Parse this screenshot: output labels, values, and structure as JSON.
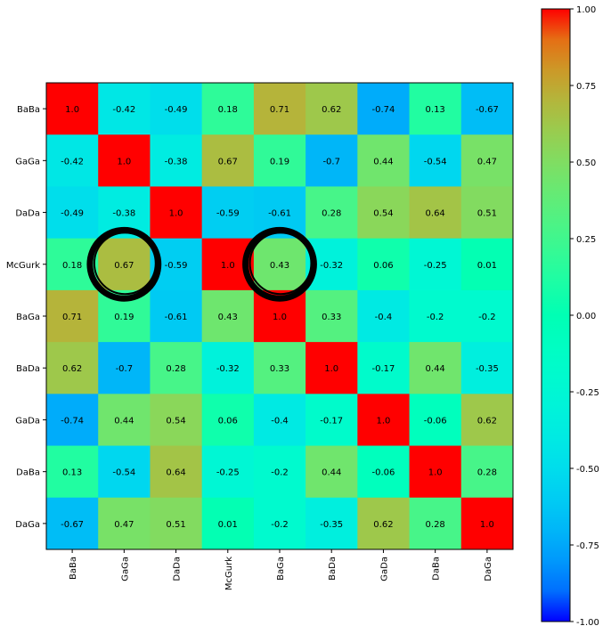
{
  "chart_data": {
    "type": "heatmap",
    "title": "",
    "xlabel": "",
    "ylabel": "",
    "categories": [
      "BaBa",
      "GaGa",
      "DaDa",
      "McGurk",
      "BaGa",
      "BaDa",
      "GaDa",
      "DaBa",
      "DaGa"
    ],
    "matrix": [
      [
        1.0,
        -0.42,
        -0.49,
        0.18,
        0.71,
        0.62,
        -0.74,
        0.13,
        -0.67
      ],
      [
        -0.42,
        1.0,
        -0.38,
        0.67,
        0.19,
        -0.7,
        0.44,
        -0.54,
        0.47
      ],
      [
        -0.49,
        -0.38,
        1.0,
        -0.59,
        -0.61,
        0.28,
        0.54,
        0.64,
        0.51
      ],
      [
        0.18,
        0.67,
        -0.59,
        1.0,
        0.43,
        -0.32,
        0.06,
        -0.25,
        0.01
      ],
      [
        0.71,
        0.19,
        -0.61,
        0.43,
        1.0,
        0.33,
        -0.4,
        -0.2,
        -0.2
      ],
      [
        0.62,
        -0.7,
        0.28,
        -0.32,
        0.33,
        1.0,
        -0.17,
        0.44,
        -0.35
      ],
      [
        -0.74,
        0.44,
        0.54,
        0.06,
        -0.4,
        -0.17,
        1.0,
        -0.06,
        0.62
      ],
      [
        0.13,
        -0.54,
        0.64,
        -0.25,
        -0.2,
        0.44,
        -0.06,
        1.0,
        0.28
      ],
      [
        -0.67,
        0.47,
        0.51,
        0.01,
        -0.2,
        -0.35,
        0.62,
        0.28,
        1.0
      ]
    ],
    "cell_labels": [
      [
        "1.0",
        "-0.42",
        "-0.49",
        "0.18",
        "0.71",
        "0.62",
        "-0.74",
        "0.13",
        "-0.67"
      ],
      [
        "-0.42",
        "1.0",
        "-0.38",
        "0.67",
        "0.19",
        "-0.7",
        "0.44",
        "-0.54",
        "0.47"
      ],
      [
        "-0.49",
        "-0.38",
        "1.0",
        "-0.59",
        "-0.61",
        "0.28",
        "0.54",
        "0.64",
        "0.51"
      ],
      [
        "0.18",
        "0.67",
        "-0.59",
        "1.0",
        "0.43",
        "-0.32",
        "0.06",
        "-0.25",
        "0.01"
      ],
      [
        "0.71",
        "0.19",
        "-0.61",
        "0.43",
        "1.0",
        "0.33",
        "-0.4",
        "-0.2",
        "-0.2"
      ],
      [
        "0.62",
        "-0.7",
        "0.28",
        "-0.32",
        "0.33",
        "1.0",
        "-0.17",
        "0.44",
        "-0.35"
      ],
      [
        "-0.74",
        "0.44",
        "0.54",
        "0.06",
        "-0.4",
        "-0.17",
        "1.0",
        "-0.06",
        "0.62"
      ],
      [
        "0.13",
        "-0.54",
        "0.64",
        "-0.25",
        "-0.2",
        "0.44",
        "-0.06",
        "1.0",
        "0.28"
      ],
      [
        "-0.67",
        "0.47",
        "0.51",
        "0.01",
        "-0.2",
        "-0.35",
        "0.62",
        "0.28",
        "1.0"
      ]
    ],
    "colormap": "rainbow",
    "vmin": -1.0,
    "vmax": 1.0,
    "colorbar_ticks": [
      "1.00",
      "0.75",
      "0.50",
      "0.25",
      "0.00",
      "-0.25",
      "-0.50",
      "-0.75",
      "-1.00"
    ],
    "colorbar_tick_values": [
      1.0,
      0.75,
      0.5,
      0.25,
      0.0,
      -0.25,
      -0.5,
      -0.75,
      -1.0
    ],
    "colorbar_placement": "right",
    "x_tick_rotation": "vertical",
    "grid": false,
    "annotations": [
      {
        "shape": "circle",
        "color": "#000000",
        "row": 3,
        "col": 1,
        "row_label": "McGurk",
        "col_label": "GaGa"
      },
      {
        "shape": "circle",
        "color": "#000000",
        "row": 3,
        "col": 4,
        "row_label": "McGurk",
        "col_label": "BaGa"
      }
    ]
  }
}
